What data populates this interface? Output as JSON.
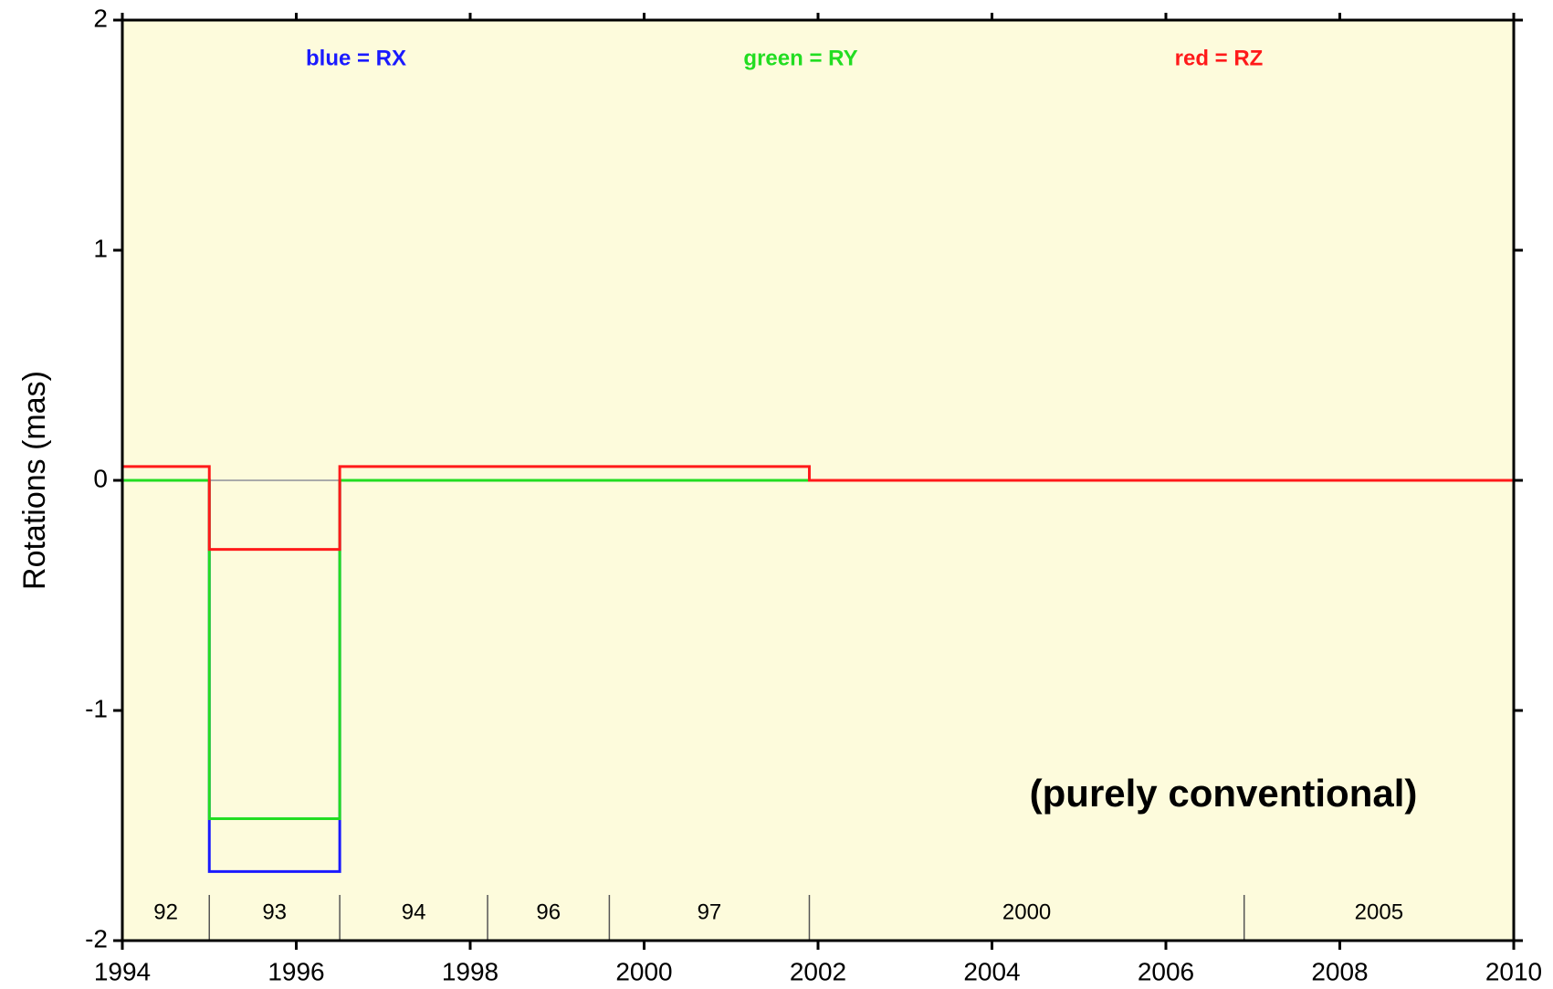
{
  "chart_data": {
    "type": "line",
    "ylabel": "Rotations (mas)",
    "xlim": [
      1994,
      2010
    ],
    "xticks": [
      1994,
      1996,
      1998,
      2000,
      2002,
      2004,
      2006,
      2008,
      2010
    ],
    "ylim": [
      -2,
      2
    ],
    "yticks": [
      -2,
      -1,
      0,
      1,
      2
    ],
    "background": "#fdfbdc",
    "series": [
      {
        "name": "RX",
        "color": "#1a1aff",
        "x": [
          1994,
          1995,
          1995,
          1996.5,
          1996.5,
          2010
        ],
        "values": [
          0,
          0,
          -1.7,
          -1.7,
          0,
          0
        ]
      },
      {
        "name": "RY",
        "color": "#22dd22",
        "x": [
          1994,
          1995,
          1995,
          1996.5,
          1996.5,
          2010
        ],
        "values": [
          0,
          0,
          -1.47,
          -1.47,
          0,
          0
        ]
      },
      {
        "name": "RZ",
        "color": "#ff1a1a",
        "x": [
          1994,
          1995,
          1995,
          1996.5,
          1996.5,
          2001.9,
          2001.9,
          2010
        ],
        "values": [
          0.06,
          0.06,
          -0.3,
          -0.3,
          0.06,
          0.06,
          0,
          0
        ]
      }
    ],
    "annotations": [
      {
        "text": "blue = RX",
        "color": "#1a1aff"
      },
      {
        "text": "green = RY",
        "color": "#22dd22"
      },
      {
        "text": "red = RZ",
        "color": "#ff1a1a"
      },
      {
        "text": "(purely conventional)",
        "color": "#000000"
      }
    ],
    "periods": [
      {
        "label": "92",
        "start": 1994,
        "end": 1995
      },
      {
        "label": "93",
        "start": 1995,
        "end": 1996.5
      },
      {
        "label": "94",
        "start": 1996.5,
        "end": 1998.2
      },
      {
        "label": "96",
        "start": 1998.2,
        "end": 1999.6
      },
      {
        "label": "97",
        "start": 1999.6,
        "end": 2001.9
      },
      {
        "label": "2000",
        "start": 2001.9,
        "end": 2006.9
      },
      {
        "label": "2005",
        "start": 2006.9,
        "end": 2010
      }
    ]
  }
}
